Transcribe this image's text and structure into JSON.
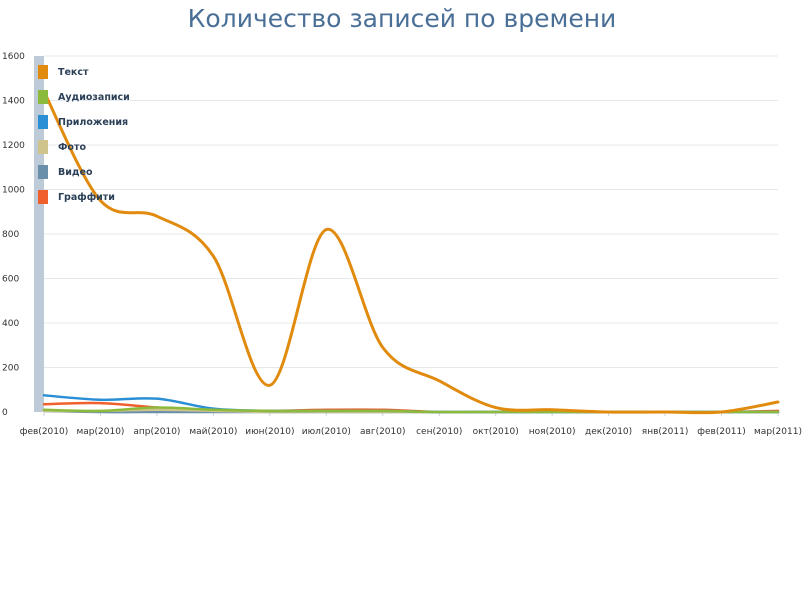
{
  "chart_data": {
    "type": "line",
    "title": "Количество записей по времени",
    "xlabel": "",
    "ylabel": "",
    "categories": [
      "фев(2010)",
      "мар(2010)",
      "апр(2010)",
      "май(2010)",
      "июн(2010)",
      "июл(2010)",
      "авг(2010)",
      "сен(2010)",
      "окт(2010)",
      "ноя(2010)",
      "дек(2010)",
      "янв(2011)",
      "фев(2011)",
      "мар(2011)"
    ],
    "ylim": [
      0,
      1600
    ],
    "yticks": [
      0,
      200,
      400,
      600,
      800,
      1000,
      1200,
      1400,
      1600
    ],
    "grid": true,
    "legend_position": "top-left",
    "series": [
      {
        "name": "Текст",
        "color": "#e18b0e",
        "values": [
          1440,
          950,
          880,
          700,
          120,
          820,
          290,
          140,
          20,
          10,
          0,
          0,
          0,
          45
        ]
      },
      {
        "name": "Аудиозаписи",
        "color": "#8cba3c",
        "values": [
          10,
          5,
          20,
          10,
          5,
          5,
          5,
          0,
          0,
          0,
          0,
          0,
          0,
          0
        ]
      },
      {
        "name": "Приложения",
        "color": "#2a8fd4",
        "values": [
          75,
          55,
          60,
          15,
          5,
          5,
          5,
          0,
          0,
          0,
          0,
          0,
          0,
          0
        ]
      },
      {
        "name": "Фото",
        "color": "#cfc58c",
        "values": [
          5,
          5,
          10,
          5,
          0,
          0,
          0,
          0,
          0,
          0,
          0,
          0,
          0,
          0
        ]
      },
      {
        "name": "Видео",
        "color": "#6a8fab",
        "values": [
          5,
          0,
          0,
          0,
          0,
          0,
          0,
          0,
          0,
          0,
          0,
          0,
          0,
          0
        ]
      },
      {
        "name": "Граффити",
        "color": "#f0602e",
        "values": [
          35,
          40,
          20,
          5,
          5,
          10,
          10,
          0,
          0,
          0,
          0,
          0,
          0,
          5
        ]
      }
    ]
  }
}
